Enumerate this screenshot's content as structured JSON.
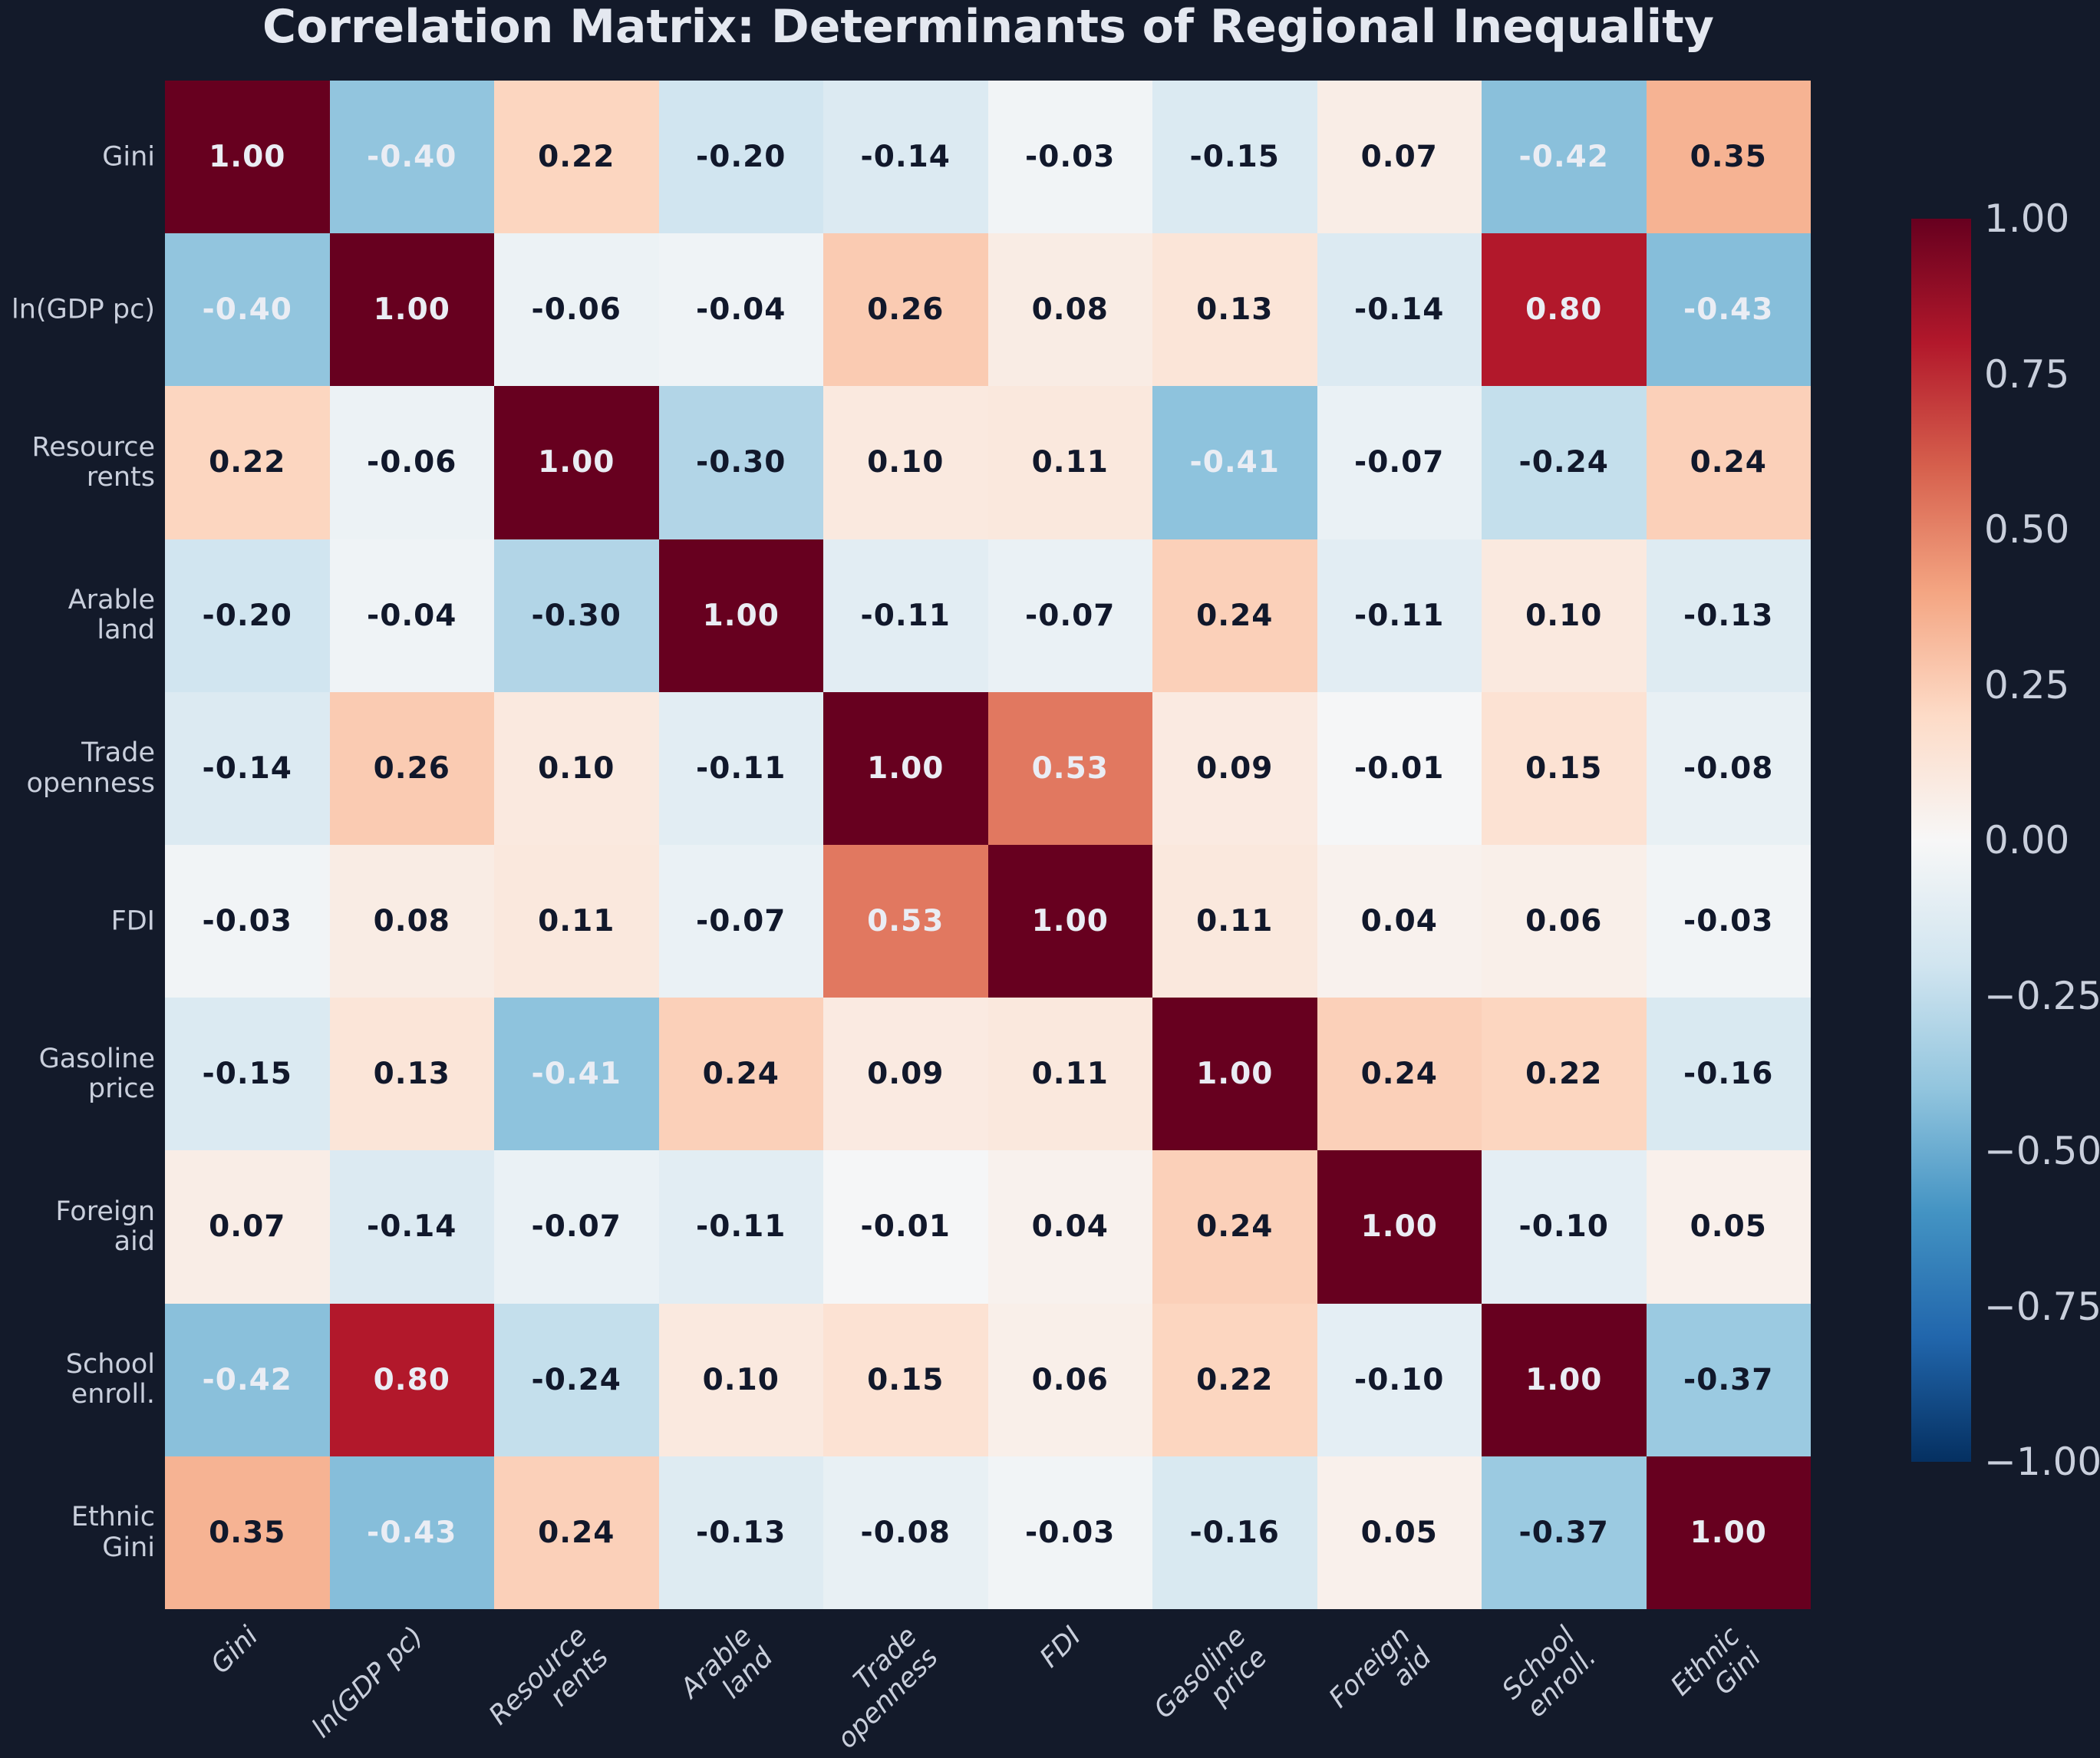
{
  "figure": {
    "title": "Correlation Matrix: Determinants of Regional Inequality"
  },
  "chart_data": {
    "type": "heatmap",
    "subtype": "correlation-matrix",
    "variables": [
      {
        "label": "Gini",
        "lines": [
          "Gini"
        ]
      },
      {
        "label": "ln(GDP pc)",
        "lines": [
          "ln(GDP pc)"
        ]
      },
      {
        "label": "Resource rents",
        "lines": [
          "Resource",
          "rents"
        ]
      },
      {
        "label": "Arable land",
        "lines": [
          "Arable",
          "land"
        ]
      },
      {
        "label": "Trade openness",
        "lines": [
          "Trade",
          "openness"
        ]
      },
      {
        "label": "FDI",
        "lines": [
          "FDI"
        ]
      },
      {
        "label": "Gasoline price",
        "lines": [
          "Gasoline",
          "price"
        ]
      },
      {
        "label": "Foreign aid",
        "lines": [
          "Foreign",
          "aid"
        ]
      },
      {
        "label": "School enroll.",
        "lines": [
          "School",
          "enroll."
        ]
      },
      {
        "label": "Ethnic Gini",
        "lines": [
          "Ethnic",
          "Gini"
        ]
      }
    ],
    "matrix": [
      [
        1.0,
        -0.4,
        0.22,
        -0.2,
        -0.14,
        -0.03,
        -0.15,
        0.07,
        -0.42,
        0.35
      ],
      [
        -0.4,
        1.0,
        -0.06,
        -0.04,
        0.26,
        0.08,
        0.13,
        -0.14,
        0.8,
        -0.43
      ],
      [
        0.22,
        -0.06,
        1.0,
        -0.3,
        0.1,
        0.11,
        -0.41,
        -0.07,
        -0.24,
        0.24
      ],
      [
        -0.2,
        -0.04,
        -0.3,
        1.0,
        -0.11,
        -0.07,
        0.24,
        -0.11,
        0.1,
        -0.13
      ],
      [
        -0.14,
        0.26,
        0.1,
        -0.11,
        1.0,
        0.53,
        0.09,
        -0.01,
        0.15,
        -0.08
      ],
      [
        -0.03,
        0.08,
        0.11,
        -0.07,
        0.53,
        1.0,
        0.11,
        0.04,
        0.06,
        -0.03
      ],
      [
        -0.15,
        0.13,
        -0.41,
        0.24,
        0.09,
        0.11,
        1.0,
        0.24,
        0.22,
        -0.16
      ],
      [
        0.07,
        -0.14,
        -0.07,
        -0.11,
        -0.01,
        0.04,
        0.24,
        1.0,
        -0.1,
        0.05
      ],
      [
        -0.42,
        0.8,
        -0.24,
        0.1,
        0.15,
        0.06,
        0.22,
        -0.1,
        1.0,
        -0.37
      ],
      [
        0.35,
        -0.43,
        0.24,
        -0.13,
        -0.08,
        -0.03,
        -0.16,
        0.05,
        -0.37,
        1.0
      ]
    ],
    "value_format_decimals": 2,
    "vmin": -1,
    "vmax": 1,
    "colormap": "RdBu_r",
    "colormap_stops_low_to_high": [
      "#053061",
      "#2166ac",
      "#4393c3",
      "#92c5de",
      "#d1e5f0",
      "#f7f7f7",
      "#fddbc7",
      "#f4a582",
      "#d6604d",
      "#b2182b",
      "#67001f"
    ],
    "colorbar": {
      "position": "right",
      "tick_labels": [
        "1.00",
        "0.75",
        "0.50",
        "0.25",
        "0.00",
        "−0.25",
        "−0.50",
        "−0.75",
        "−1.00"
      ],
      "tick_values": [
        1.0,
        0.75,
        0.5,
        0.25,
        0.0,
        -0.25,
        -0.5,
        -0.75,
        -1.0
      ]
    },
    "grid": false,
    "xtick_rotation_deg": 45,
    "xtick_style": "italic"
  },
  "colors": {
    "background": "#131a2a",
    "title_text": "#e4e8f0",
    "tick_label_text": "#c9cfdc",
    "annotation_dark_text": "#11182b",
    "annotation_light_text": "#eaedf4",
    "light_text_abs_threshold": 0.4
  }
}
